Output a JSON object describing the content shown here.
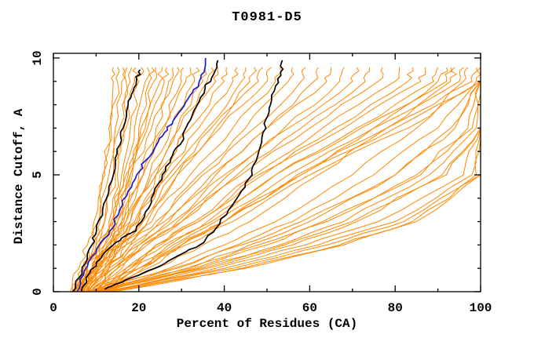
{
  "chart_data": {
    "type": "line",
    "title": "T0981-D5",
    "xlabel": "Percent of Residues (CA)",
    "ylabel": "Distance Cutoff, A",
    "xlim": [
      0,
      100
    ],
    "ylim": [
      0,
      10
    ],
    "x_major_ticks": [
      0,
      20,
      40,
      60,
      80,
      100
    ],
    "x_minor_ticks": [
      10,
      30,
      50,
      70,
      90
    ],
    "y_major_ticks": [
      0,
      5,
      10
    ],
    "y_minor_ticks": [
      1,
      2,
      3,
      4,
      6,
      7,
      8,
      9
    ],
    "grid": false,
    "legend": "none",
    "tick_style": "inward-mirrored",
    "colors": {
      "ensemble": "#ff8800",
      "highlight": "#000000",
      "selected": "#1a1acd",
      "axis": "#000000"
    },
    "series": [
      {
        "name": "highlight-model-1",
        "color": "#000000",
        "width": 1.7,
        "points": [
          [
            4.5,
            0
          ],
          [
            6,
            0.6
          ],
          [
            7.5,
            1.2
          ],
          [
            9,
            2
          ],
          [
            10.1,
            2.6
          ],
          [
            11.5,
            3.5
          ],
          [
            13,
            4.5
          ],
          [
            14.5,
            5.5
          ],
          [
            15.6,
            6.3
          ],
          [
            16.3,
            7
          ],
          [
            17.5,
            8
          ],
          [
            18.7,
            8.6
          ],
          [
            19.5,
            9.1
          ],
          [
            20.3,
            9.5
          ]
        ]
      },
      {
        "name": "highlight-model-2",
        "color": "#000000",
        "width": 1.7,
        "points": [
          [
            6.5,
            0
          ],
          [
            8.5,
            0.8
          ],
          [
            11,
            1.4
          ],
          [
            14,
            2
          ],
          [
            17,
            2.4
          ],
          [
            19.3,
            2.6
          ],
          [
            21.5,
            3.4
          ],
          [
            23.5,
            4.2
          ],
          [
            25.5,
            5
          ],
          [
            27.5,
            5.7
          ],
          [
            29.7,
            6.3
          ],
          [
            31.5,
            7.2
          ],
          [
            33.4,
            7.9
          ],
          [
            35.5,
            8.7
          ],
          [
            37.5,
            9.3
          ],
          [
            38.5,
            9.9
          ]
        ]
      },
      {
        "name": "highlight-model-3",
        "color": "#000000",
        "width": 1.7,
        "points": [
          [
            12,
            0.1
          ],
          [
            16,
            0.4
          ],
          [
            21,
            0.8
          ],
          [
            26,
            1.2
          ],
          [
            31,
            1.7
          ],
          [
            35.2,
            2.1
          ],
          [
            38,
            2.7
          ],
          [
            41,
            3.5
          ],
          [
            44,
            4.3
          ],
          [
            46.5,
            5
          ],
          [
            47.8,
            5.8
          ],
          [
            48.8,
            6.6
          ],
          [
            49.8,
            7.4
          ],
          [
            50.8,
            8
          ],
          [
            52,
            8.8
          ],
          [
            53.2,
            9.4
          ],
          [
            53.6,
            9.9
          ]
        ]
      },
      {
        "name": "selected-model-blue",
        "color": "#1a1acd",
        "width": 1.7,
        "points": [
          [
            5.5,
            0
          ],
          [
            7,
            0.7
          ],
          [
            9,
            1.5
          ],
          [
            11.5,
            2.2
          ],
          [
            13.8,
            2.7
          ],
          [
            15.5,
            3.5
          ],
          [
            17.5,
            4.3
          ],
          [
            19.5,
            5
          ],
          [
            21.5,
            5.6
          ],
          [
            24.2,
            6.3
          ],
          [
            26,
            6.8
          ],
          [
            28,
            7.3
          ],
          [
            30,
            7.8
          ],
          [
            32,
            8.4
          ],
          [
            34,
            8.9
          ],
          [
            35.3,
            9.4
          ],
          [
            35.6,
            10
          ]
        ]
      }
    ],
    "ensemble": {
      "name": "all-models",
      "color": "#ff8800",
      "width": 1,
      "y_grid": [
        0,
        1,
        2,
        3,
        5,
        7,
        9,
        9.6
      ],
      "curves_x": [
        [
          5,
          7,
          9,
          10.5,
          12,
          13,
          14,
          14
        ],
        [
          4,
          6,
          8,
          9.5,
          11.5,
          13.5,
          15,
          15
        ],
        [
          5,
          7.5,
          9.5,
          11,
          13,
          14.5,
          16,
          16.2
        ],
        [
          5.5,
          8,
          10,
          12,
          14,
          15.5,
          17,
          17.2
        ],
        [
          6,
          9,
          11,
          13,
          15,
          16.5,
          18,
          18.3
        ],
        [
          4.5,
          7,
          10,
          12,
          14.5,
          17,
          19,
          19.3
        ],
        [
          6,
          9.5,
          12,
          14,
          16,
          18,
          20,
          20.5
        ],
        [
          5,
          8,
          11,
          13.5,
          16.5,
          19,
          21.5,
          22
        ],
        [
          6.5,
          10,
          13,
          15,
          17.5,
          20,
          22.5,
          23
        ],
        [
          5.5,
          9,
          12,
          14.5,
          17,
          20.5,
          23.5,
          24
        ],
        [
          7,
          10.5,
          13.5,
          16,
          18.5,
          21.5,
          25,
          25.5
        ],
        [
          6,
          9,
          12.5,
          15,
          18,
          22,
          26,
          26.5
        ],
        [
          5,
          8,
          11,
          14,
          18,
          23,
          27,
          28
        ],
        [
          6,
          10,
          13,
          16,
          20,
          24,
          28,
          29
        ],
        [
          7,
          11,
          14,
          17,
          21,
          25.5,
          30,
          30.5
        ],
        [
          5.5,
          9,
          13,
          16.5,
          21,
          26,
          31,
          32
        ],
        [
          6.5,
          10.5,
          14.5,
          18,
          22.5,
          27.5,
          33,
          33.5
        ],
        [
          7.5,
          12,
          15.5,
          19,
          24,
          29,
          35,
          35.5
        ],
        [
          6,
          10,
          14,
          18,
          23,
          29.5,
          36,
          37
        ],
        [
          8,
          12,
          16,
          20,
          25,
          31,
          38,
          38.5
        ],
        [
          5,
          9,
          13,
          17,
          24,
          32,
          40,
          40.5
        ],
        [
          7,
          11,
          15,
          19.5,
          26,
          34,
          42,
          43
        ],
        [
          6,
          10,
          15,
          20,
          27,
          36,
          44,
          45
        ],
        [
          8,
          13,
          17,
          22,
          29,
          38,
          46,
          47
        ],
        [
          7,
          12,
          16,
          21,
          28,
          37,
          48,
          49
        ],
        [
          6.5,
          11,
          15.5,
          21,
          29,
          39,
          50,
          51
        ],
        [
          7,
          12,
          17,
          23,
          32,
          42,
          52,
          53
        ],
        [
          8,
          13,
          18,
          24,
          34,
          45,
          55,
          56
        ],
        [
          7.5,
          12.5,
          18,
          25,
          35,
          47,
          58,
          59
        ],
        [
          9,
          14,
          20,
          27,
          38,
          50,
          61,
          62
        ],
        [
          8,
          13,
          19,
          26,
          37,
          50,
          64,
          65
        ],
        [
          9.5,
          15,
          21,
          29,
          41,
          54,
          67,
          68
        ],
        [
          8.5,
          14,
          20,
          28,
          40,
          55,
          70,
          71
        ],
        [
          10,
          16,
          22,
          30,
          43,
          58,
          73,
          74
        ],
        [
          9,
          15,
          21,
          30,
          44,
          60,
          76,
          77
        ],
        [
          10,
          17,
          24,
          33,
          47,
          63,
          80,
          81
        ],
        [
          11,
          18,
          25,
          34,
          48,
          66,
          83,
          84
        ],
        [
          10.5,
          17,
          24,
          34,
          49,
          68,
          86,
          87
        ],
        [
          12,
          19,
          27,
          37,
          52,
          71,
          89,
          90
        ],
        [
          11,
          18,
          26,
          36,
          52,
          72,
          92,
          93
        ],
        [
          12,
          20,
          28,
          38,
          55,
          75,
          95,
          96
        ],
        [
          13,
          21,
          30,
          40,
          57,
          78,
          98,
          99
        ],
        [
          12.5,
          20,
          29,
          40,
          58,
          80,
          100,
          100
        ],
        [
          13,
          22,
          31,
          42,
          60,
          83,
          100,
          100
        ],
        [
          8,
          20,
          30,
          40,
          58,
          75,
          90,
          92
        ],
        [
          9,
          24,
          35,
          46,
          62,
          78,
          93,
          94
        ],
        [
          9,
          27,
          40,
          52,
          70,
          85,
          96,
          97
        ],
        [
          10,
          29,
          43,
          56,
          75,
          90,
          99,
          100
        ],
        [
          10,
          31,
          46,
          60,
          80,
          93,
          100,
          100
        ],
        [
          8,
          28,
          44,
          58,
          80,
          94,
          100,
          100
        ],
        [
          11,
          33,
          50,
          64,
          85,
          97,
          100,
          100
        ],
        [
          11,
          35,
          53,
          68,
          88,
          99,
          100,
          100
        ],
        [
          9,
          32,
          48,
          63,
          86,
          98,
          100,
          100
        ],
        [
          12,
          36,
          56,
          71,
          91,
          100,
          100,
          100
        ],
        [
          10,
          34,
          54,
          70,
          92,
          100,
          100,
          100
        ],
        [
          13,
          38,
          59,
          76,
          96,
          100,
          100,
          100
        ],
        [
          12,
          40,
          62,
          80,
          98,
          100,
          100,
          100
        ],
        [
          13,
          42,
          64,
          82,
          99,
          100,
          100,
          100
        ],
        [
          14,
          44,
          67,
          84,
          100,
          100,
          100,
          100
        ],
        [
          14,
          45,
          68,
          85,
          100,
          100,
          100,
          100
        ]
      ]
    }
  }
}
